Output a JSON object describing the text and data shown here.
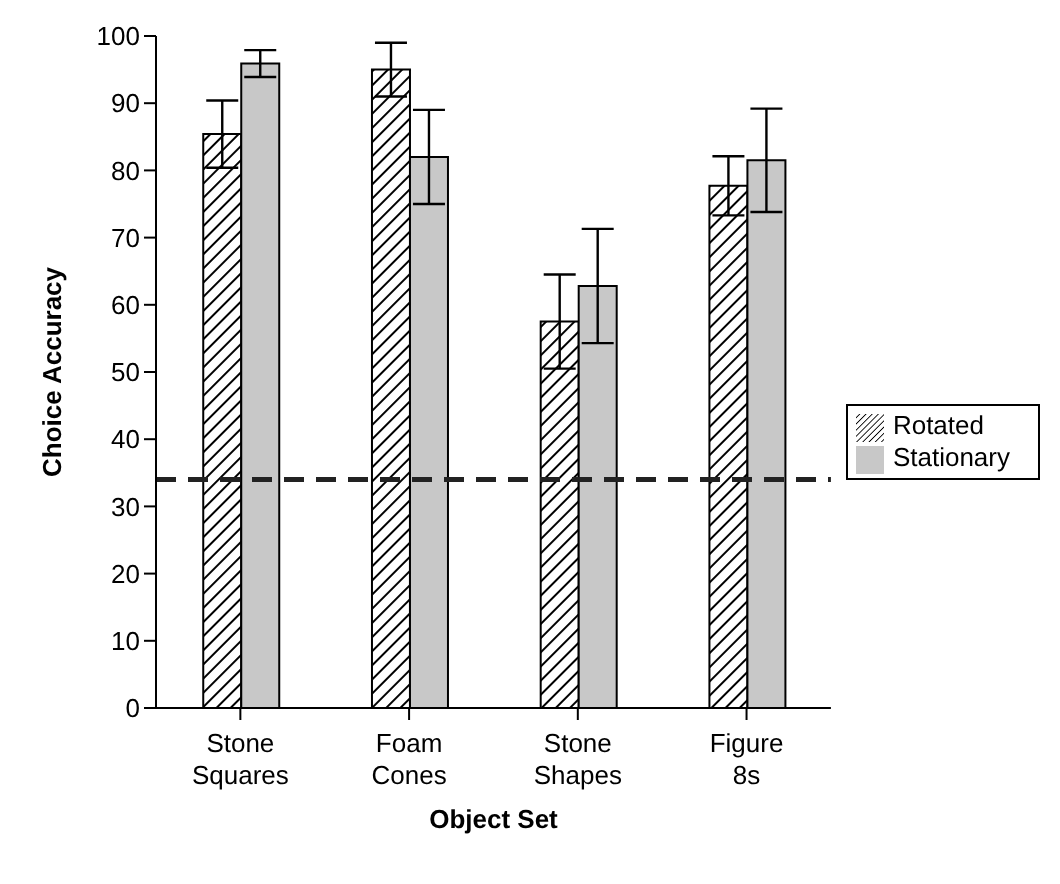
{
  "chart_data": {
    "type": "bar",
    "xlabel": "Object Set",
    "ylabel": "Choice Accuracy",
    "categories": [
      "Stone Squares",
      "Foam Cones",
      "Stone Shapes",
      "Figure 8s"
    ],
    "series": [
      {
        "name": "Rotated",
        "color": "#000000",
        "values": [
          85.4,
          95,
          57.5,
          77.7
        ],
        "errors": [
          5,
          4,
          7,
          4.4
        ]
      },
      {
        "name": "Stationary",
        "color": "#c8c8c8",
        "values": [
          95.9,
          82,
          62.8,
          81.5
        ],
        "errors": [
          2,
          7,
          8.5,
          7.7
        ]
      }
    ],
    "ylim": [
      0,
      100
    ],
    "yticks": [
      0,
      10,
      20,
      30,
      40,
      50,
      60,
      70,
      80,
      90,
      100
    ],
    "grid": false,
    "legend": "right",
    "ref_lines": [
      {
        "axis": "y",
        "value": 34,
        "color": "#222222",
        "line_style": "dashed"
      }
    ]
  }
}
